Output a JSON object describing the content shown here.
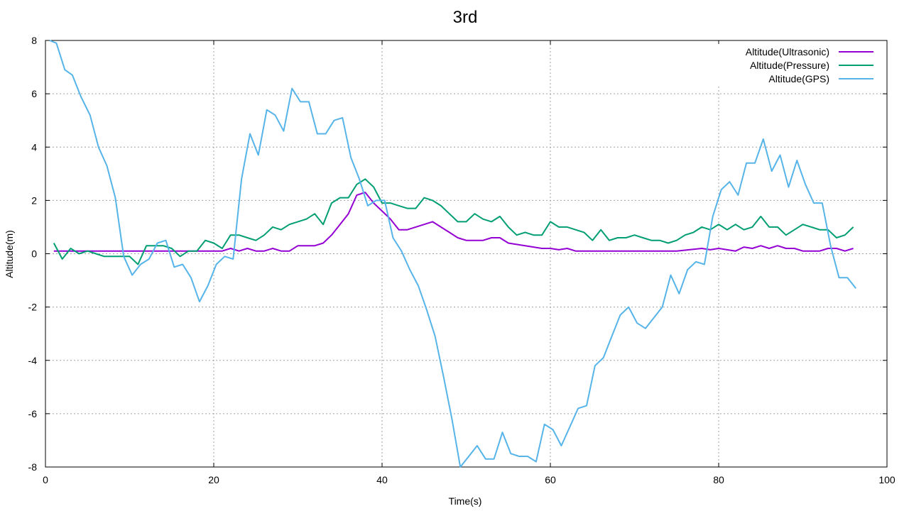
{
  "chart_data": {
    "type": "line",
    "title": "3rd",
    "xlabel": "Time(s)",
    "ylabel": "Altitude(m)",
    "xlim": [
      0,
      100
    ],
    "ylim": [
      -8,
      8
    ],
    "xticks": [
      0,
      20,
      40,
      60,
      80,
      100
    ],
    "yticks": [
      -8,
      -6,
      -4,
      -2,
      0,
      2,
      4,
      6,
      8
    ],
    "grid": true,
    "legend_position": "top-right",
    "series": [
      {
        "name": "Altitude(Ultrasonic)",
        "color": "#9400d3",
        "x": [
          1,
          5,
          10,
          15,
          18,
          19,
          21,
          22,
          23,
          24,
          25,
          26,
          27,
          28,
          29,
          30,
          31,
          32,
          33,
          34,
          35,
          36,
          37,
          38,
          39,
          40,
          41,
          42,
          43,
          44,
          45,
          46,
          47,
          48,
          49,
          50,
          51,
          52,
          53,
          54,
          55,
          56,
          57,
          58,
          59,
          60,
          61,
          62,
          63,
          64,
          65,
          70,
          75,
          78,
          79,
          80,
          81,
          82,
          83,
          84,
          85,
          86,
          87,
          88,
          89,
          90,
          91,
          92,
          93,
          94,
          95,
          96
        ],
        "y": [
          0.1,
          0.1,
          0.1,
          0.1,
          0.1,
          0.1,
          0.1,
          0.2,
          0.1,
          0.2,
          0.1,
          0.1,
          0.2,
          0.1,
          0.1,
          0.3,
          0.3,
          0.3,
          0.4,
          0.7,
          1.1,
          1.5,
          2.2,
          2.3,
          1.9,
          1.6,
          1.3,
          0.9,
          0.9,
          1.0,
          1.1,
          1.2,
          1.0,
          0.8,
          0.6,
          0.5,
          0.5,
          0.5,
          0.6,
          0.6,
          0.4,
          0.35,
          0.3,
          0.25,
          0.2,
          0.2,
          0.15,
          0.2,
          0.1,
          0.1,
          0.1,
          0.1,
          0.1,
          0.2,
          0.15,
          0.2,
          0.15,
          0.1,
          0.25,
          0.2,
          0.3,
          0.2,
          0.3,
          0.2,
          0.2,
          0.1,
          0.1,
          0.1,
          0.2,
          0.2,
          0.1,
          0.2
        ]
      },
      {
        "name": "Altitude(Pressure)",
        "color": "#009e73",
        "x": [
          1,
          2,
          3,
          4,
          5,
          6,
          7,
          8,
          9,
          10,
          11,
          12,
          13,
          14,
          15,
          16,
          17,
          18,
          19,
          20,
          21,
          22,
          23,
          24,
          25,
          26,
          27,
          28,
          29,
          30,
          31,
          32,
          33,
          34,
          35,
          36,
          37,
          38,
          39,
          40,
          41,
          42,
          43,
          44,
          45,
          46,
          47,
          48,
          49,
          50,
          51,
          52,
          53,
          54,
          55,
          56,
          57,
          58,
          59,
          60,
          61,
          62,
          63,
          64,
          65,
          66,
          67,
          68,
          69,
          70,
          71,
          72,
          73,
          74,
          75,
          76,
          77,
          78,
          79,
          80,
          81,
          82,
          83,
          84,
          85,
          86,
          87,
          88,
          89,
          90,
          91,
          92,
          93,
          94,
          95,
          96
        ],
        "y": [
          0.4,
          -0.2,
          0.2,
          0.0,
          0.1,
          0.0,
          -0.1,
          -0.1,
          -0.1,
          -0.1,
          -0.4,
          0.3,
          0.3,
          0.3,
          0.2,
          -0.1,
          0.1,
          0.1,
          0.5,
          0.4,
          0.2,
          0.7,
          0.7,
          0.6,
          0.5,
          0.7,
          1.0,
          0.9,
          1.1,
          1.2,
          1.3,
          1.5,
          1.1,
          1.9,
          2.1,
          2.1,
          2.6,
          2.8,
          2.5,
          1.9,
          1.9,
          1.8,
          1.7,
          1.7,
          2.1,
          2.0,
          1.8,
          1.5,
          1.2,
          1.2,
          1.5,
          1.3,
          1.2,
          1.4,
          1.0,
          0.7,
          0.8,
          0.7,
          0.7,
          1.2,
          1.0,
          1.0,
          0.9,
          0.8,
          0.5,
          0.9,
          0.5,
          0.6,
          0.6,
          0.7,
          0.6,
          0.5,
          0.5,
          0.4,
          0.5,
          0.7,
          0.8,
          1.0,
          0.9,
          1.1,
          0.9,
          1.1,
          0.9,
          1.0,
          1.4,
          1.0,
          1.0,
          0.7,
          0.9,
          1.1,
          1.0,
          0.9,
          0.9,
          0.6,
          0.7,
          1.0
        ]
      },
      {
        "name": "Altitude(GPS)",
        "color": "#56b4e9",
        "x": [
          0.5,
          1.3,
          2.3,
          3.2,
          4.2,
          5.3,
          6.3,
          7.3,
          8.3,
          9.3,
          10.3,
          11.3,
          12.3,
          13.3,
          14.3,
          15.3,
          16.3,
          17.3,
          18.3,
          19.3,
          20.3,
          21.3,
          22.3,
          23.3,
          24.3,
          25.3,
          26.3,
          27.3,
          28.3,
          29.3,
          30.3,
          31.3,
          32.3,
          33.3,
          34.3,
          35.3,
          36.3,
          37.3,
          38.3,
          39.3,
          40.3,
          41.3,
          42.3,
          43.3,
          44.3,
          45.3,
          46.3,
          47.3,
          48.3,
          49.3,
          50.3,
          51.3,
          52.3,
          53.3,
          54.3,
          55.3,
          56.3,
          57.3,
          58.3,
          59.3,
          60.3,
          61.3,
          62.3,
          63.3,
          64.3,
          65.3,
          66.3,
          67.3,
          68.3,
          69.3,
          70.3,
          71.3,
          72.3,
          73.3,
          74.3,
          75.3,
          76.3,
          77.3,
          78.3,
          79.3,
          80.3,
          81.3,
          82.3,
          83.3,
          84.3,
          85.3,
          86.3,
          87.3,
          88.3,
          89.3,
          90.3,
          91.3,
          92.3,
          93.3,
          94.3,
          95.3,
          96.3
        ],
        "y": [
          8.0,
          7.9,
          6.9,
          6.7,
          5.9,
          5.2,
          4.0,
          3.3,
          2.1,
          -0.1,
          -0.8,
          -0.4,
          -0.2,
          0.4,
          0.5,
          -0.5,
          -0.4,
          -0.9,
          -1.8,
          -1.2,
          -0.4,
          -0.1,
          -0.2,
          2.8,
          4.5,
          3.7,
          5.4,
          5.2,
          4.6,
          6.2,
          5.7,
          5.7,
          4.5,
          4.5,
          5.0,
          5.1,
          3.6,
          2.8,
          1.8,
          2.0,
          2.0,
          0.6,
          0.1,
          -0.6,
          -1.2,
          -2.1,
          -3.1,
          -4.6,
          -6.2,
          -8.0,
          -7.6,
          -7.2,
          -7.7,
          -7.7,
          -6.7,
          -7.5,
          -7.6,
          -7.6,
          -7.8,
          -6.4,
          -6.6,
          -7.2,
          -6.5,
          -5.8,
          -5.7,
          -4.2,
          -3.9,
          -3.1,
          -2.3,
          -2.0,
          -2.6,
          -2.8,
          -2.4,
          -2.0,
          -0.8,
          -1.5,
          -0.6,
          -0.3,
          -0.4,
          1.4,
          2.4,
          2.7,
          2.2,
          3.4,
          3.4,
          4.3,
          3.1,
          3.7,
          2.5,
          3.5,
          2.6,
          1.9,
          1.9,
          0.3,
          -0.9,
          -0.9,
          -1.3
        ]
      }
    ]
  }
}
